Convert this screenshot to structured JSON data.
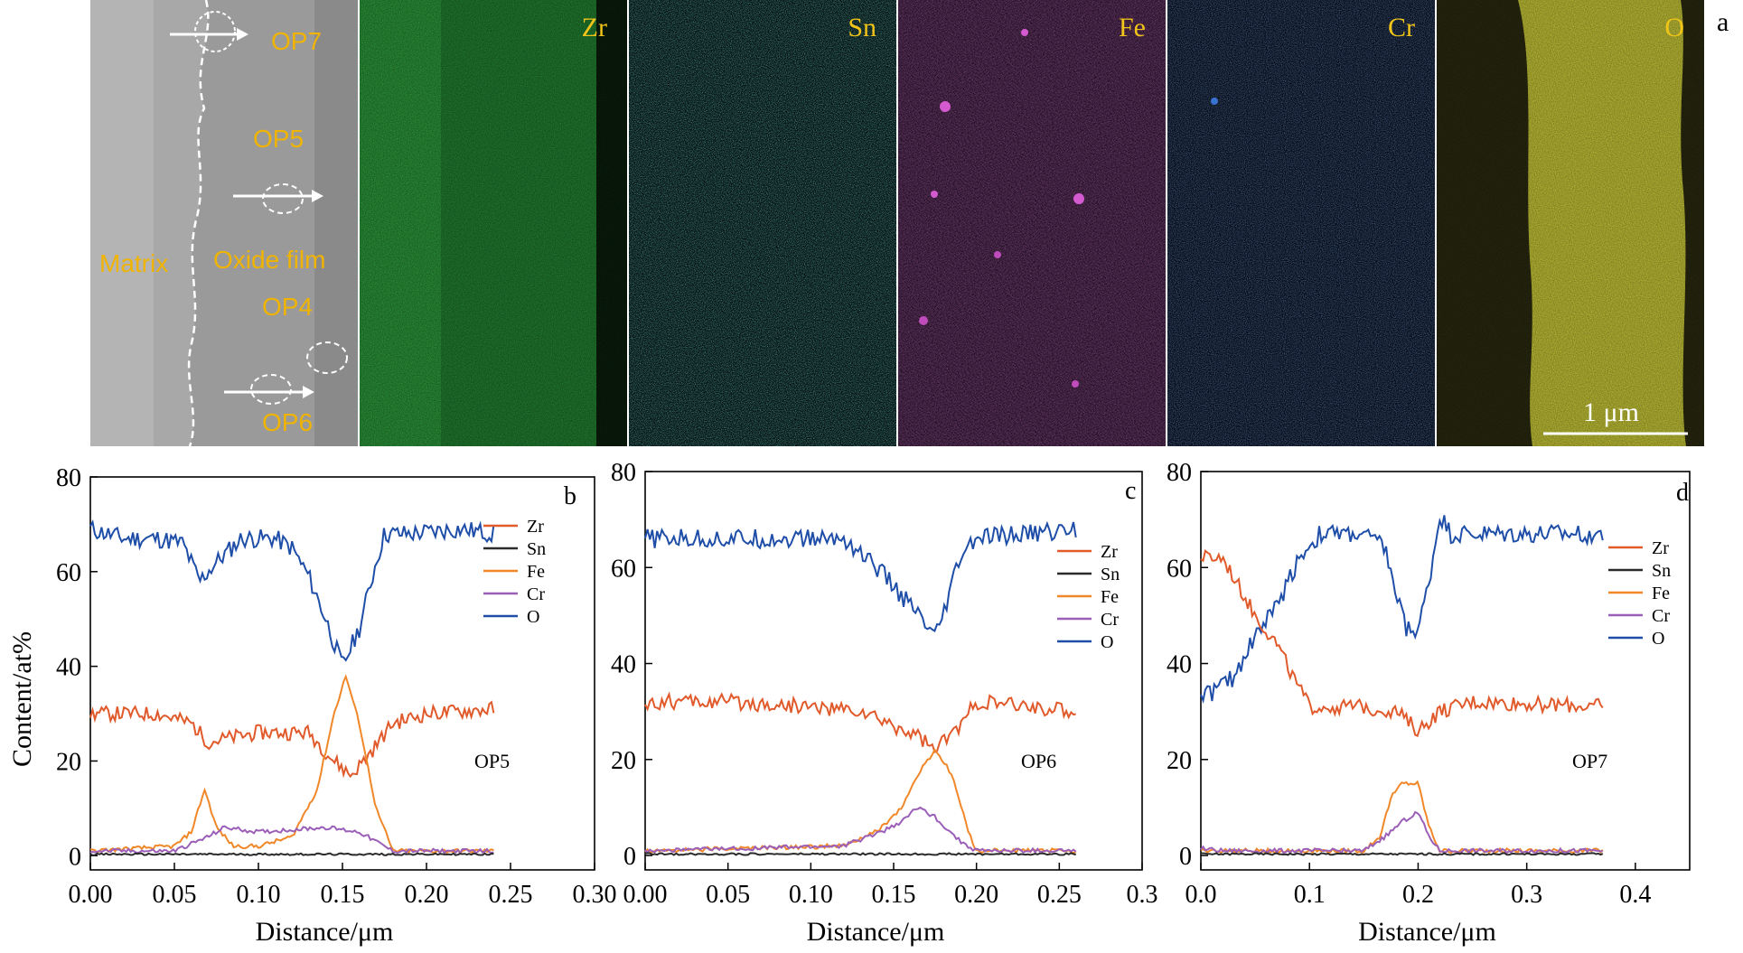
{
  "figure_letter": "a",
  "sem": {
    "labels": {
      "matrix": "Matrix",
      "oxide": "Oxide film",
      "op4": "OP4",
      "op5": "OP5",
      "op6": "OP6",
      "op7": "OP7"
    }
  },
  "maps": [
    {
      "element": "Zr",
      "color": "#2fa33f"
    },
    {
      "element": "Sn",
      "color": "#2aa6a0"
    },
    {
      "element": "Fe",
      "color": "#b93cb6"
    },
    {
      "element": "Cr",
      "color": "#2f5aa8"
    },
    {
      "element": "O",
      "color": "#c8c838"
    }
  ],
  "scalebar_label": "1 μm",
  "y_axis_label": "Content/at%",
  "x_axis_label": "Distance/μm",
  "colors": {
    "Zr": "#e05a2b",
    "Sn": "#2b2b2b",
    "Fe": "#f0882a",
    "Cr": "#9b5fb8",
    "O": "#1f4ea8"
  },
  "chart_data": [
    {
      "type": "line",
      "letter": "b",
      "annotation": "OP5",
      "xlim": [
        0,
        0.3
      ],
      "ylim": [
        -3,
        80
      ],
      "xticks": [
        "0.00",
        "0.05",
        "0.10",
        "0.15",
        "0.20",
        "0.25",
        "0.30"
      ],
      "yticks": [
        "0",
        "20",
        "40",
        "60",
        "80"
      ],
      "legend": [
        "Zr",
        "Sn",
        "Fe",
        "Cr",
        "O"
      ],
      "series": [
        {
          "name": "O",
          "x": [
            0,
            0.02,
            0.04,
            0.055,
            0.065,
            0.075,
            0.09,
            0.11,
            0.12,
            0.13,
            0.14,
            0.15,
            0.16,
            0.17,
            0.175,
            0.19,
            0.22,
            0.24
          ],
          "y": [
            69,
            67,
            67,
            66,
            58,
            62,
            67,
            67,
            65,
            59,
            50,
            40,
            48,
            62,
            68,
            68,
            69,
            68
          ]
        },
        {
          "name": "Zr",
          "x": [
            0,
            0.04,
            0.06,
            0.07,
            0.1,
            0.13,
            0.145,
            0.155,
            0.165,
            0.18,
            0.2,
            0.24
          ],
          "y": [
            30,
            30,
            28,
            24,
            26,
            26,
            20,
            17,
            21,
            28,
            30,
            31
          ]
        },
        {
          "name": "Fe",
          "x": [
            0,
            0.05,
            0.06,
            0.068,
            0.075,
            0.085,
            0.1,
            0.12,
            0.135,
            0.145,
            0.152,
            0.16,
            0.17,
            0.18,
            0.24
          ],
          "y": [
            1,
            2,
            5,
            14,
            6,
            2,
            2,
            4,
            14,
            30,
            38,
            28,
            10,
            1,
            1
          ]
        },
        {
          "name": "Cr",
          "x": [
            0,
            0.05,
            0.07,
            0.08,
            0.1,
            0.14,
            0.16,
            0.17,
            0.18,
            0.24
          ],
          "y": [
            1,
            1,
            4,
            6,
            5,
            6,
            5,
            3,
            1,
            1
          ]
        },
        {
          "name": "Sn",
          "x": [
            0,
            0.24
          ],
          "y": [
            0.3,
            0.3
          ]
        }
      ]
    },
    {
      "type": "line",
      "letter": "c",
      "annotation": "OP6",
      "xlim": [
        0,
        0.3
      ],
      "ylim": [
        -3,
        80
      ],
      "xticks": [
        "0.00",
        "0.05",
        "0.10",
        "0.15",
        "0.20",
        "0.25",
        "0.3"
      ],
      "yticks": [
        "0",
        "20",
        "40",
        "60",
        "80"
      ],
      "legend": [
        "Zr",
        "Sn",
        "Fe",
        "Cr",
        "O"
      ],
      "series": [
        {
          "name": "O",
          "x": [
            0,
            0.05,
            0.1,
            0.12,
            0.14,
            0.155,
            0.165,
            0.175,
            0.18,
            0.19,
            0.2,
            0.26
          ],
          "y": [
            66,
            66,
            66,
            66,
            60,
            54,
            50,
            45,
            50,
            62,
            66,
            68
          ]
        },
        {
          "name": "Zr",
          "x": [
            0,
            0.05,
            0.1,
            0.13,
            0.15,
            0.165,
            0.175,
            0.19,
            0.2,
            0.26
          ],
          "y": [
            32,
            32,
            31,
            30,
            27,
            25,
            22,
            27,
            32,
            30
          ]
        },
        {
          "name": "Fe",
          "x": [
            0,
            0.12,
            0.14,
            0.155,
            0.165,
            0.175,
            0.185,
            0.195,
            0.2,
            0.26
          ],
          "y": [
            1,
            2,
            5,
            10,
            17,
            22,
            17,
            5,
            1,
            1
          ]
        },
        {
          "name": "Cr",
          "x": [
            0,
            0.12,
            0.15,
            0.165,
            0.175,
            0.19,
            0.2,
            0.26
          ],
          "y": [
            1,
            2,
            6,
            10,
            8,
            3,
            1,
            1
          ]
        },
        {
          "name": "Sn",
          "x": [
            0,
            0.26
          ],
          "y": [
            0.3,
            0.3
          ]
        }
      ]
    },
    {
      "type": "line",
      "letter": "d",
      "annotation": "OP7",
      "xlim": [
        0,
        0.45
      ],
      "ylim": [
        -3,
        80
      ],
      "xticks": [
        "0.0",
        "0.1",
        "0.2",
        "0.3",
        "0.4"
      ],
      "yticks": [
        "0",
        "20",
        "40",
        "60",
        "80"
      ],
      "legend": [
        "Zr",
        "Sn",
        "Fe",
        "Cr",
        "O"
      ],
      "series": [
        {
          "name": "O",
          "x": [
            0,
            0.01,
            0.03,
            0.05,
            0.07,
            0.09,
            0.11,
            0.15,
            0.17,
            0.18,
            0.19,
            0.2,
            0.21,
            0.22,
            0.23,
            0.3,
            0.37
          ],
          "y": [
            34,
            34,
            37,
            46,
            52,
            62,
            67,
            67,
            64,
            54,
            47,
            47,
            57,
            71,
            67,
            67,
            67
          ]
        },
        {
          "name": "Zr",
          "x": [
            0,
            0.02,
            0.03,
            0.05,
            0.07,
            0.085,
            0.1,
            0.15,
            0.18,
            0.2,
            0.22,
            0.25,
            0.37
          ],
          "y": [
            62,
            62,
            58,
            50,
            44,
            37,
            31,
            31,
            30,
            26,
            30,
            32,
            31
          ]
        },
        {
          "name": "Fe",
          "x": [
            0,
            0.15,
            0.165,
            0.175,
            0.185,
            0.2,
            0.21,
            0.22,
            0.37
          ],
          "y": [
            1,
            1,
            4,
            12,
            15,
            15,
            6,
            1,
            1
          ]
        },
        {
          "name": "Cr",
          "x": [
            0,
            0.02,
            0.15,
            0.17,
            0.185,
            0.2,
            0.21,
            0.22,
            0.37
          ],
          "y": [
            1.5,
            1,
            1,
            4,
            7,
            9,
            4,
            1,
            1
          ]
        },
        {
          "name": "Sn",
          "x": [
            0,
            0.37
          ],
          "y": [
            0.3,
            0.3
          ]
        }
      ]
    }
  ]
}
